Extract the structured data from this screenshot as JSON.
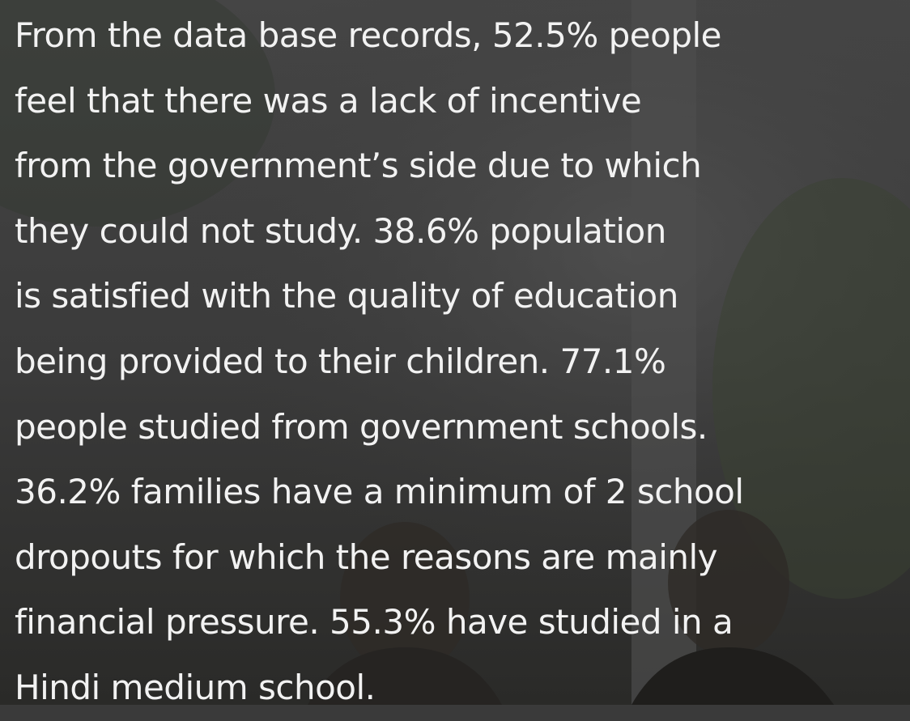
{
  "text": {
    "lines": [
      "From the data base records, 52.5% people",
      "feel that there was a lack of incentive",
      "from the government’s side due to which",
      "they could not study. 38.6% population",
      "is satisfied with the quality of education",
      "being provided to their children. 77.1%",
      "people studied from government schools.",
      "36.2% families have a minimum of 2 school",
      "dropouts for which the reasons are mainly",
      "financial pressure. 55.3% have studied in a",
      "Hindi medium school."
    ]
  }
}
